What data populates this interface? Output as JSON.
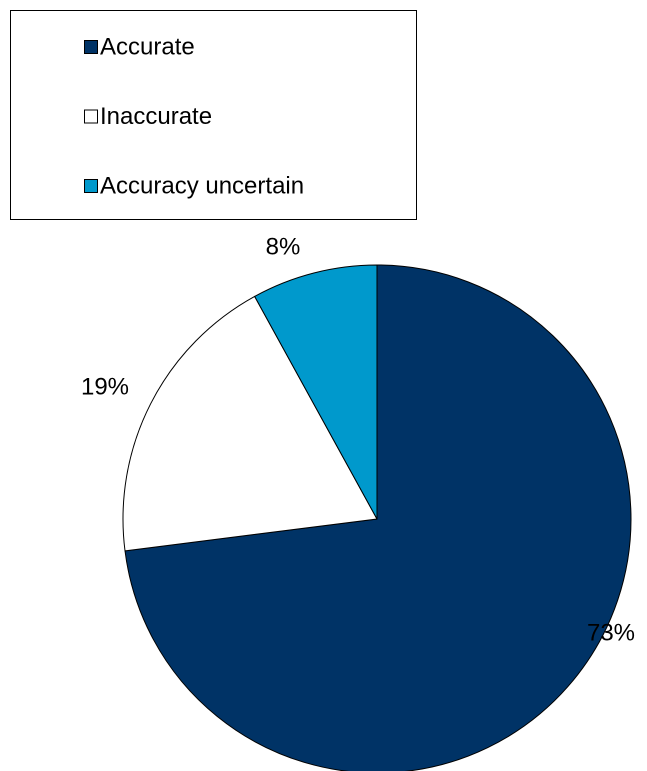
{
  "chart_data": {
    "type": "pie",
    "categories": [
      "Accurate",
      "Inaccurate",
      "Accuracy uncertain"
    ],
    "values": [
      73,
      19,
      8
    ],
    "value_labels": [
      "73%",
      "19%",
      "8%"
    ],
    "colors": [
      "#003366",
      "#ffffff",
      "#0099cc"
    ],
    "legend": "top-left"
  }
}
